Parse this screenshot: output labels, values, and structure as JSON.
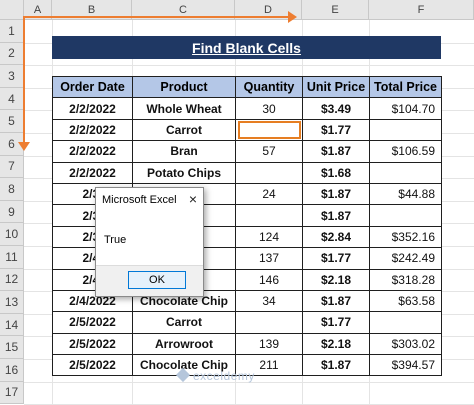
{
  "columns": [
    "A",
    "B",
    "C",
    "D",
    "E",
    "F"
  ],
  "rows": [
    "1",
    "2",
    "3",
    "4",
    "5",
    "6",
    "7",
    "8",
    "9",
    "10",
    "11",
    "12",
    "13",
    "14",
    "15",
    "16",
    "17"
  ],
  "sheet_title": "Find Blank Cells",
  "table": {
    "headers": [
      "Order Date",
      "Product",
      "Quantity",
      "Unit Price",
      "Total Price"
    ],
    "rows": [
      [
        "2/2/2022",
        "Whole Wheat",
        "30",
        "$3.49",
        "$104.70"
      ],
      [
        "2/2/2022",
        "Carrot",
        "",
        "$1.77",
        ""
      ],
      [
        "2/2/2022",
        "Bran",
        "57",
        "$1.87",
        "$106.59"
      ],
      [
        "2/2/2022",
        "Potato Chips",
        "",
        "$1.68",
        ""
      ],
      [
        "2/3/",
        "hip",
        "24",
        "$1.87",
        "$44.88"
      ],
      [
        "2/3/",
        "",
        "",
        "$1.87",
        ""
      ],
      [
        "2/3/",
        "isin",
        "124",
        "$2.84",
        "$352.16"
      ],
      [
        "2/4/",
        "",
        "137",
        "$1.77",
        "$242.49"
      ],
      [
        "2/4/",
        "t",
        "146",
        "$2.18",
        "$318.28"
      ],
      [
        "2/4/2022",
        "Chocolate Chip",
        "34",
        "$1.87",
        "$63.58"
      ],
      [
        "2/5/2022",
        "Carrot",
        "",
        "$1.77",
        ""
      ],
      [
        "2/5/2022",
        "Arrowroot",
        "139",
        "$2.18",
        "$303.02"
      ],
      [
        "2/5/2022",
        "Chocolate Chip",
        "211",
        "$1.87",
        "$394.57"
      ]
    ]
  },
  "dialog": {
    "title": "Microsoft Excel",
    "close_icon": "×",
    "message": "True",
    "ok_label": "OK"
  },
  "watermark": "exceldemy",
  "accent_color": "#ed7d31",
  "header_fill": "#b4c7e7",
  "title_fill": "#1f3864"
}
